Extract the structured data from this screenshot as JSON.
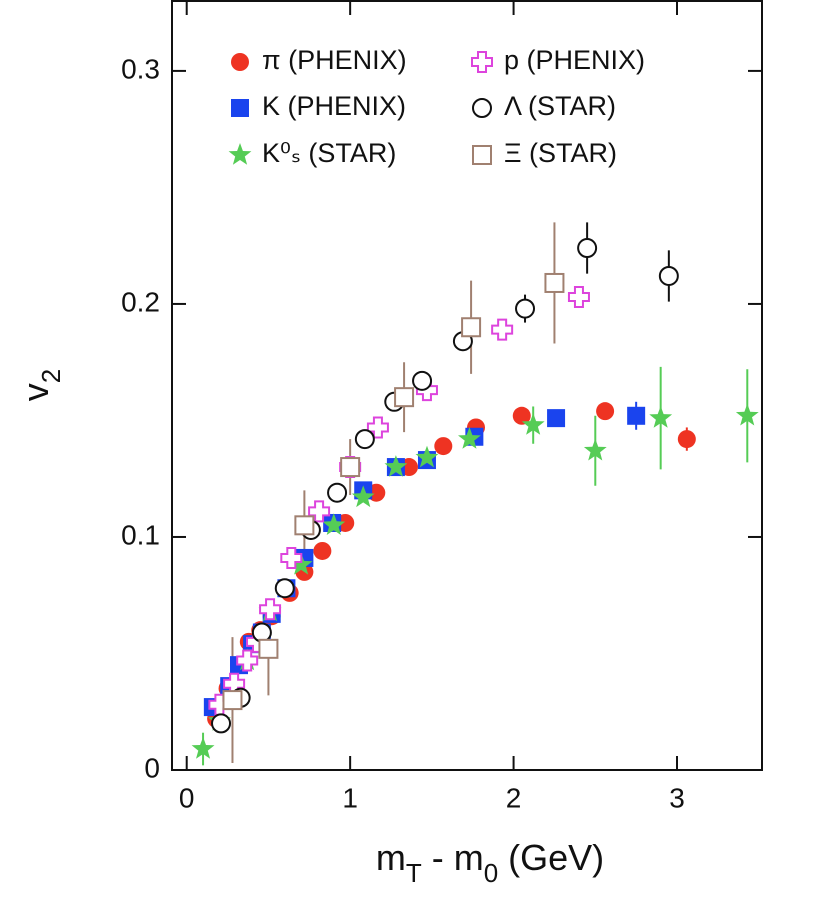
{
  "chart_data": {
    "type": "scatter",
    "x_label": [
      {
        "text": "m"
      },
      {
        "text": "T",
        "sub": true
      },
      {
        "text": " - m"
      },
      {
        "text": "0",
        "sub": true
      },
      {
        "text": " (GeV)"
      }
    ],
    "y_label": [
      {
        "text": "v"
      },
      {
        "text": "2",
        "sub": true
      }
    ],
    "xlim": [
      -0.09,
      3.52
    ],
    "ylim": [
      0,
      0.33
    ],
    "xticks": [
      0,
      1,
      2,
      3
    ],
    "yticks": [
      0,
      0.1,
      0.2,
      0.3
    ],
    "legend": "top-left",
    "series": [
      {
        "name": "π (PHENIX)",
        "color": "#ee3322",
        "marker": "circle",
        "filled": true,
        "x": [
          0.18,
          0.25,
          0.32,
          0.38,
          0.45,
          0.52,
          0.63,
          0.72,
          0.83,
          0.97,
          1.16,
          1.36,
          1.57,
          1.77,
          2.05,
          2.56,
          3.06
        ],
        "values": [
          0.022,
          0.035,
          0.045,
          0.055,
          0.06,
          0.066,
          0.076,
          0.085,
          0.094,
          0.106,
          0.119,
          0.13,
          0.139,
          0.147,
          0.152,
          0.154,
          0.142
        ],
        "errors": [
          null,
          null,
          null,
          null,
          null,
          null,
          null,
          null,
          null,
          null,
          null,
          null,
          null,
          null,
          null,
          null,
          0.005
        ]
      },
      {
        "name": "K (PHENIX)",
        "color": "#1a44ee",
        "marker": "square",
        "filled": true,
        "x": [
          0.16,
          0.26,
          0.32,
          0.4,
          0.46,
          0.52,
          0.61,
          0.72,
          0.89,
          1.08,
          1.28,
          1.47,
          1.76,
          2.26,
          2.75
        ],
        "values": [
          0.027,
          0.036,
          0.045,
          0.054,
          0.059,
          0.067,
          0.078,
          0.091,
          0.106,
          0.12,
          0.13,
          0.133,
          0.143,
          0.151,
          0.152
        ],
        "errors": [
          null,
          null,
          null,
          null,
          null,
          null,
          null,
          null,
          null,
          null,
          null,
          null,
          null,
          null,
          0.006
        ]
      },
      {
        "name": "K⁰ₛ (STAR)",
        "color": "#55cc55",
        "marker": "star",
        "filled": true,
        "x": [
          0.1,
          0.2,
          0.28,
          0.37,
          0.51,
          0.7,
          0.9,
          1.08,
          1.28,
          1.47,
          1.73,
          2.12,
          2.5,
          2.9,
          3.43
        ],
        "values": [
          0.009,
          0.021,
          0.031,
          0.047,
          0.068,
          0.088,
          0.105,
          0.117,
          0.13,
          0.134,
          0.142,
          0.148,
          0.137,
          0.151,
          0.152
        ],
        "errors": [
          0.007,
          null,
          null,
          null,
          null,
          null,
          null,
          null,
          null,
          null,
          null,
          0.008,
          0.015,
          0.022,
          0.02
        ]
      },
      {
        "name": "p (PHENIX)",
        "color": "#dd44dd",
        "marker": "cross",
        "filled": false,
        "x": [
          0.2,
          0.29,
          0.37,
          0.43,
          0.51,
          0.64,
          0.81,
          1.0,
          1.17,
          1.47,
          1.93,
          2.4
        ],
        "values": [
          0.028,
          0.037,
          0.047,
          0.055,
          0.069,
          0.091,
          0.111,
          0.13,
          0.147,
          0.163,
          0.189,
          0.203
        ],
        "errors": [
          null,
          null,
          null,
          null,
          null,
          null,
          null,
          null,
          null,
          null,
          null,
          null
        ]
      },
      {
        "name": "Λ (STAR)",
        "color": "#111111",
        "marker": "circle",
        "filled": false,
        "x": [
          0.21,
          0.33,
          0.46,
          0.6,
          0.76,
          0.92,
          1.09,
          1.27,
          1.44,
          1.69,
          2.07,
          2.45,
          2.95
        ],
        "values": [
          0.02,
          0.031,
          0.059,
          0.078,
          0.103,
          0.119,
          0.142,
          0.158,
          0.167,
          0.184,
          0.198,
          0.224,
          0.212
        ],
        "errors": [
          null,
          null,
          null,
          null,
          null,
          null,
          null,
          null,
          null,
          null,
          0.006,
          0.011,
          0.011
        ]
      },
      {
        "name": "Ξ (STAR)",
        "color": "#a08070",
        "marker": "square",
        "filled": false,
        "x": [
          0.28,
          0.5,
          0.72,
          1.0,
          1.33,
          1.74,
          2.25
        ],
        "values": [
          0.03,
          0.052,
          0.105,
          0.13,
          0.16,
          0.19,
          0.209
        ],
        "errors": [
          0.027,
          0.02,
          0.015,
          0.012,
          0.015,
          0.02,
          0.026
        ]
      }
    ]
  }
}
